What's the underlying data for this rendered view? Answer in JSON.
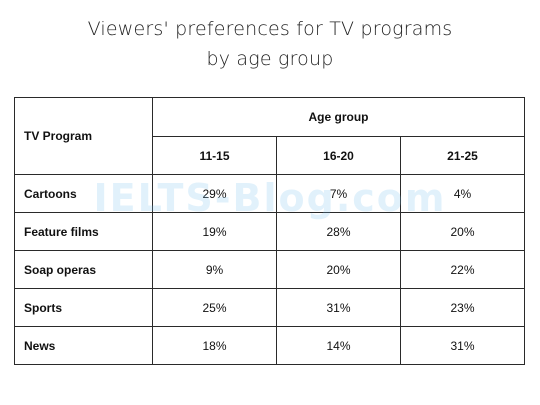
{
  "page": {
    "title_line1": "Viewers' preferences for TV programs",
    "title_line2": "by age group"
  },
  "watermark": "IELTS-Blog.com",
  "chart_data": {
    "type": "table",
    "row_header": "TV Program",
    "column_group": "Age group",
    "columns": [
      "11-15",
      "16-20",
      "21-25"
    ],
    "rows": [
      {
        "label": "Cartoons",
        "values": [
          "29%",
          "7%",
          "4%"
        ]
      },
      {
        "label": "Feature films",
        "values": [
          "19%",
          "28%",
          "20%"
        ]
      },
      {
        "label": "Soap operas",
        "values": [
          "9%",
          "20%",
          "22%"
        ]
      },
      {
        "label": "Sports",
        "values": [
          "25%",
          "31%",
          "23%"
        ]
      },
      {
        "label": "News",
        "values": [
          "18%",
          "14%",
          "31%"
        ]
      }
    ]
  }
}
